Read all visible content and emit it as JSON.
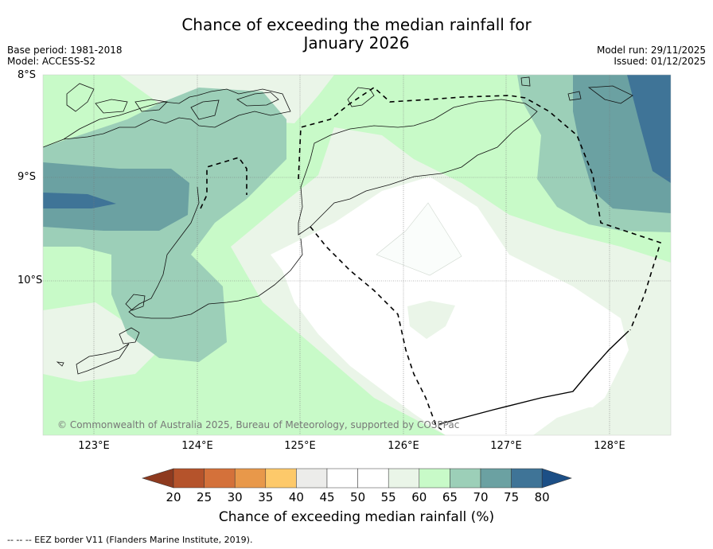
{
  "title_line1": "Chance of exceeding the median rainfall for",
  "title_line2": "January 2026",
  "base_period": "Base period: 1981-2018",
  "model": "Model: ACCESS-S2",
  "model_run": "Model run: 29/11/2025",
  "issued": "Issued: 01/12/2025",
  "lat_labels": [
    "8°S",
    "9°S",
    "10°S"
  ],
  "lon_labels": [
    "123°E",
    "124°E",
    "125°E",
    "126°E",
    "127°E",
    "128°E"
  ],
  "credit": "© Commonwealth of Australia 2025, Bureau of Meteorology, supported by COSPPac",
  "colorbar": {
    "label": "Chance of exceeding median rainfall (%)",
    "ticks": [
      "20",
      "25",
      "30",
      "35",
      "40",
      "45",
      "50",
      "55",
      "60",
      "65",
      "70",
      "75",
      "80"
    ],
    "colors": [
      "#8e3a1f",
      "#b5532b",
      "#d4713a",
      "#e8984a",
      "#fdc96a",
      "#ececea",
      "#ffffff",
      "#ffffff",
      "#eaf5e8",
      "#c8fac8",
      "#9ccfb8",
      "#6ba1a2",
      "#3f7497",
      "#1c4f86"
    ]
  },
  "footer": "--  --  -- EEZ border V11 (Flanders Marine Institute, 2019)."
}
